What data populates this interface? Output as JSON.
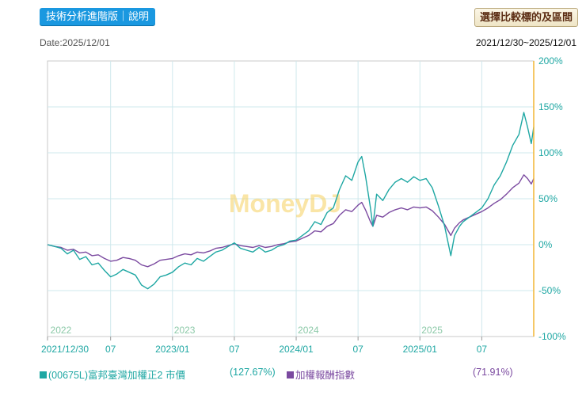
{
  "header": {
    "tech_button_label": "技術分析進階版｜說明",
    "compare_button_label": "選擇比較標的及區間",
    "date_label": "Date:2025/12/01",
    "range_label": "2021/12/30~2025/12/01"
  },
  "watermark": "MoneyDJ",
  "colors": {
    "teal": "#1ea7a3",
    "purple": "#7b4aa0",
    "axis_right": "#f2b635",
    "grid": "#cfe8ec"
  },
  "chart_data": {
    "type": "line",
    "title": "",
    "xlabel": "",
    "ylabel": "",
    "ylim": [
      -100,
      200
    ],
    "y_ticks": [
      200,
      150,
      100,
      50,
      0,
      -50,
      -100
    ],
    "y_tick_labels": [
      "200%",
      "150%",
      "100%",
      "50%",
      "0%",
      "-50%",
      "-100%"
    ],
    "x_range": [
      2021.99,
      2025.92
    ],
    "x_ticks": [
      {
        "x": 2021.99,
        "label": "2021/12/30"
      },
      {
        "x": 2022.5,
        "label": "07"
      },
      {
        "x": 2023.0,
        "label": "2023/01"
      },
      {
        "x": 2023.5,
        "label": "07"
      },
      {
        "x": 2024.0,
        "label": "2024/01"
      },
      {
        "x": 2024.5,
        "label": "07"
      },
      {
        "x": 2025.0,
        "label": "2025/01"
      },
      {
        "x": 2025.5,
        "label": "07"
      }
    ],
    "year_labels": [
      {
        "x": 2022.0,
        "label": "2022"
      },
      {
        "x": 2023.0,
        "label": "2023"
      },
      {
        "x": 2024.0,
        "label": "2024"
      },
      {
        "x": 2025.0,
        "label": "2025"
      }
    ],
    "series": [
      {
        "name": "(00675L)富邦臺灣加權正2 市價",
        "final_label": "(127.67%)",
        "color": "#1ea7a3",
        "points": [
          [
            2021.99,
            0
          ],
          [
            2022.05,
            -2
          ],
          [
            2022.1,
            -4
          ],
          [
            2022.15,
            -10
          ],
          [
            2022.2,
            -6
          ],
          [
            2022.25,
            -16
          ],
          [
            2022.3,
            -13
          ],
          [
            2022.35,
            -22
          ],
          [
            2022.4,
            -20
          ],
          [
            2022.45,
            -28
          ],
          [
            2022.5,
            -35
          ],
          [
            2022.55,
            -32
          ],
          [
            2022.6,
            -27
          ],
          [
            2022.65,
            -30
          ],
          [
            2022.7,
            -33
          ],
          [
            2022.75,
            -44
          ],
          [
            2022.8,
            -48
          ],
          [
            2022.85,
            -43
          ],
          [
            2022.9,
            -35
          ],
          [
            2022.95,
            -33
          ],
          [
            2023.0,
            -30
          ],
          [
            2023.05,
            -24
          ],
          [
            2023.1,
            -20
          ],
          [
            2023.15,
            -22
          ],
          [
            2023.2,
            -15
          ],
          [
            2023.25,
            -18
          ],
          [
            2023.3,
            -13
          ],
          [
            2023.35,
            -8
          ],
          [
            2023.4,
            -6
          ],
          [
            2023.45,
            -2
          ],
          [
            2023.5,
            2
          ],
          [
            2023.55,
            -4
          ],
          [
            2023.6,
            -6
          ],
          [
            2023.65,
            -8
          ],
          [
            2023.7,
            -3
          ],
          [
            2023.75,
            -8
          ],
          [
            2023.8,
            -6
          ],
          [
            2023.85,
            -2
          ],
          [
            2023.9,
            0
          ],
          [
            2023.95,
            4
          ],
          [
            2024.0,
            5
          ],
          [
            2024.05,
            10
          ],
          [
            2024.1,
            15
          ],
          [
            2024.15,
            25
          ],
          [
            2024.2,
            22
          ],
          [
            2024.25,
            35
          ],
          [
            2024.3,
            40
          ],
          [
            2024.35,
            60
          ],
          [
            2024.4,
            75
          ],
          [
            2024.45,
            70
          ],
          [
            2024.5,
            90
          ],
          [
            2024.53,
            96
          ],
          [
            2024.56,
            75
          ],
          [
            2024.6,
            40
          ],
          [
            2024.62,
            20
          ],
          [
            2024.65,
            55
          ],
          [
            2024.7,
            48
          ],
          [
            2024.75,
            60
          ],
          [
            2024.8,
            68
          ],
          [
            2024.85,
            72
          ],
          [
            2024.9,
            68
          ],
          [
            2024.95,
            74
          ],
          [
            2025.0,
            70
          ],
          [
            2025.05,
            72
          ],
          [
            2025.1,
            62
          ],
          [
            2025.15,
            42
          ],
          [
            2025.2,
            20
          ],
          [
            2025.25,
            -12
          ],
          [
            2025.28,
            10
          ],
          [
            2025.32,
            20
          ],
          [
            2025.35,
            25
          ],
          [
            2025.4,
            30
          ],
          [
            2025.45,
            35
          ],
          [
            2025.5,
            40
          ],
          [
            2025.55,
            50
          ],
          [
            2025.6,
            65
          ],
          [
            2025.65,
            75
          ],
          [
            2025.7,
            90
          ],
          [
            2025.75,
            108
          ],
          [
            2025.8,
            120
          ],
          [
            2025.84,
            144
          ],
          [
            2025.87,
            128
          ],
          [
            2025.9,
            110
          ],
          [
            2025.92,
            128
          ]
        ]
      },
      {
        "name": "加權報酬指數",
        "final_label": "(71.91%)",
        "color": "#7b4aa0",
        "points": [
          [
            2021.99,
            0
          ],
          [
            2022.05,
            -2
          ],
          [
            2022.1,
            -3
          ],
          [
            2022.15,
            -6
          ],
          [
            2022.2,
            -5
          ],
          [
            2022.25,
            -9
          ],
          [
            2022.3,
            -8
          ],
          [
            2022.35,
            -12
          ],
          [
            2022.4,
            -11
          ],
          [
            2022.45,
            -15
          ],
          [
            2022.5,
            -18
          ],
          [
            2022.55,
            -17
          ],
          [
            2022.6,
            -14
          ],
          [
            2022.65,
            -15
          ],
          [
            2022.7,
            -17
          ],
          [
            2022.75,
            -22
          ],
          [
            2022.8,
            -24
          ],
          [
            2022.85,
            -21
          ],
          [
            2022.9,
            -17
          ],
          [
            2022.95,
            -16
          ],
          [
            2023.0,
            -15
          ],
          [
            2023.05,
            -12
          ],
          [
            2023.1,
            -10
          ],
          [
            2023.15,
            -11
          ],
          [
            2023.2,
            -8
          ],
          [
            2023.25,
            -9
          ],
          [
            2023.3,
            -7
          ],
          [
            2023.35,
            -4
          ],
          [
            2023.4,
            -3
          ],
          [
            2023.45,
            -1
          ],
          [
            2023.5,
            1
          ],
          [
            2023.55,
            -1
          ],
          [
            2023.6,
            -2
          ],
          [
            2023.65,
            -3
          ],
          [
            2023.7,
            -1
          ],
          [
            2023.75,
            -3
          ],
          [
            2023.8,
            -2
          ],
          [
            2023.85,
            0
          ],
          [
            2023.9,
            1
          ],
          [
            2023.95,
            3
          ],
          [
            2024.0,
            4
          ],
          [
            2024.05,
            7
          ],
          [
            2024.1,
            10
          ],
          [
            2024.15,
            15
          ],
          [
            2024.2,
            14
          ],
          [
            2024.25,
            20
          ],
          [
            2024.3,
            23
          ],
          [
            2024.35,
            32
          ],
          [
            2024.4,
            38
          ],
          [
            2024.45,
            36
          ],
          [
            2024.5,
            43
          ],
          [
            2024.53,
            46
          ],
          [
            2024.56,
            38
          ],
          [
            2024.6,
            25
          ],
          [
            2024.62,
            20
          ],
          [
            2024.65,
            32
          ],
          [
            2024.7,
            30
          ],
          [
            2024.75,
            35
          ],
          [
            2024.8,
            38
          ],
          [
            2024.85,
            40
          ],
          [
            2024.9,
            38
          ],
          [
            2024.95,
            41
          ],
          [
            2025.0,
            40
          ],
          [
            2025.05,
            41
          ],
          [
            2025.1,
            37
          ],
          [
            2025.15,
            30
          ],
          [
            2025.2,
            22
          ],
          [
            2025.25,
            10
          ],
          [
            2025.28,
            18
          ],
          [
            2025.32,
            24
          ],
          [
            2025.35,
            27
          ],
          [
            2025.4,
            30
          ],
          [
            2025.45,
            33
          ],
          [
            2025.5,
            36
          ],
          [
            2025.55,
            40
          ],
          [
            2025.6,
            45
          ],
          [
            2025.65,
            49
          ],
          [
            2025.7,
            55
          ],
          [
            2025.75,
            62
          ],
          [
            2025.8,
            67
          ],
          [
            2025.84,
            76
          ],
          [
            2025.87,
            72
          ],
          [
            2025.9,
            66
          ],
          [
            2025.92,
            72
          ]
        ]
      }
    ]
  }
}
